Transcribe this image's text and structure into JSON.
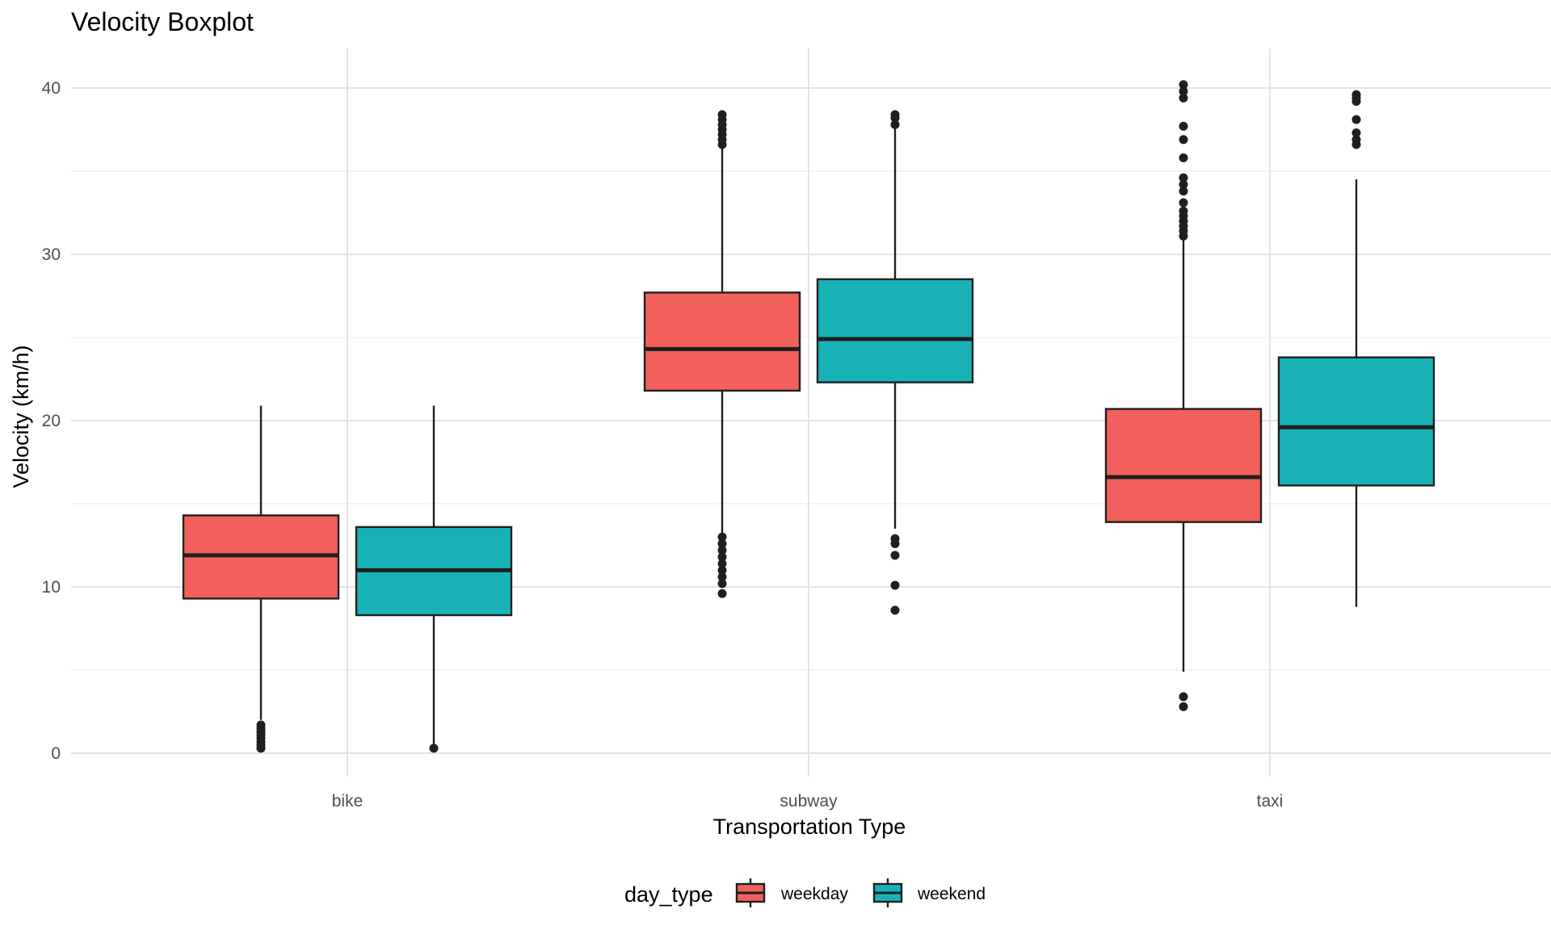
{
  "chart_data": {
    "type": "boxplot",
    "title": "Velocity Boxplot",
    "xlabel": "Transportation Type",
    "ylabel": "Velocity (km/h)",
    "categories": [
      "bike",
      "subway",
      "taxi"
    ],
    "ylim": [
      -1,
      42
    ],
    "yticks": [
      0,
      10,
      20,
      30,
      40
    ],
    "grid": true,
    "legend": {
      "title": "day_type",
      "placement": "bottom"
    },
    "series": [
      {
        "name": "weekday",
        "color": "#F2605C",
        "boxes": [
          {
            "category": "bike",
            "whisker_low": 2.0,
            "q1": 9.3,
            "median": 11.9,
            "q3": 14.3,
            "whisker_high": 20.9,
            "outliers": [
              0.3,
              0.5,
              0.7,
              0.9,
              1.1,
              1.3,
              1.5,
              1.7
            ]
          },
          {
            "category": "subway",
            "whisker_low": 13.0,
            "q1": 21.8,
            "median": 24.3,
            "q3": 27.7,
            "whisker_high": 36.4,
            "outliers": [
              9.6,
              10.2,
              10.6,
              11.0,
              11.4,
              11.8,
              12.2,
              12.6,
              13.0,
              36.6,
              36.9,
              37.2,
              37.5,
              37.8,
              38.1,
              38.4
            ]
          },
          {
            "category": "taxi",
            "whisker_low": 4.9,
            "q1": 13.9,
            "median": 16.6,
            "q3": 20.7,
            "whisker_high": 30.9,
            "outliers": [
              2.8,
              3.4,
              31.1,
              31.4,
              31.7,
              32.0,
              32.3,
              32.6,
              33.1,
              33.8,
              34.2,
              34.6,
              35.8,
              36.9,
              37.7,
              39.4,
              39.8,
              40.2
            ]
          }
        ]
      },
      {
        "name": "weekend",
        "color": "#18B2B6",
        "boxes": [
          {
            "category": "bike",
            "whisker_low": 0.3,
            "q1": 8.3,
            "median": 11.0,
            "q3": 13.6,
            "whisker_high": 20.9,
            "outliers": [
              0.3
            ]
          },
          {
            "category": "subway",
            "whisker_low": 13.5,
            "q1": 22.3,
            "median": 24.9,
            "q3": 28.5,
            "whisker_high": 37.6,
            "outliers": [
              8.6,
              10.1,
              11.9,
              12.6,
              12.9,
              37.8,
              38.2,
              38.4
            ]
          },
          {
            "category": "taxi",
            "whisker_low": 8.8,
            "q1": 16.1,
            "median": 19.6,
            "q3": 23.8,
            "whisker_high": 34.5,
            "outliers": [
              36.6,
              36.9,
              37.3,
              38.1,
              39.2,
              39.4,
              39.6
            ]
          }
        ]
      }
    ]
  }
}
